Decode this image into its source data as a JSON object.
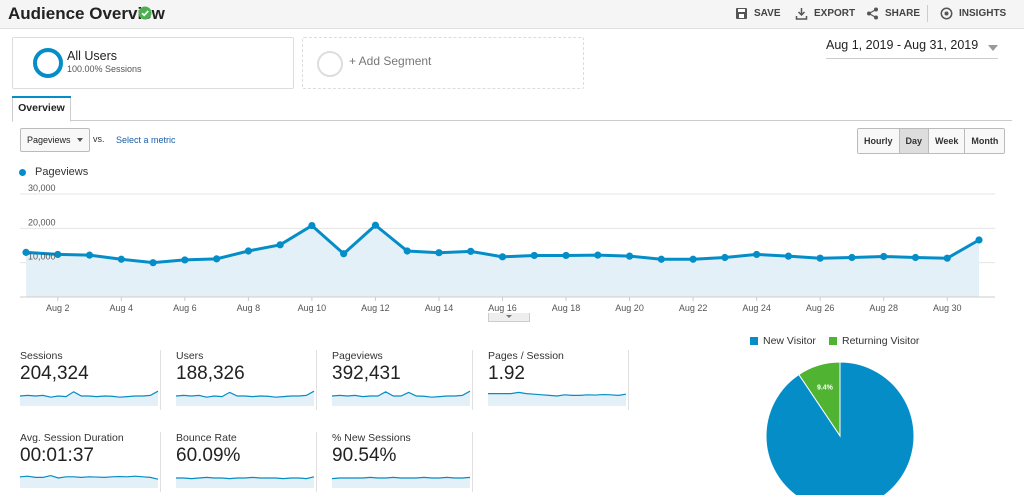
{
  "header": {
    "title": "Audience Overview",
    "actions": {
      "save": "SAVE",
      "export": "EXPORT",
      "share": "SHARE",
      "insights": "INSIGHTS"
    }
  },
  "segments": {
    "primary": {
      "name": "All Users",
      "detail": "100.00% Sessions",
      "color": "#058dc7"
    },
    "add": "+ Add Segment"
  },
  "date_range": "Aug 1, 2019 - Aug 31, 2019",
  "tabs": {
    "overview": "Overview"
  },
  "controls": {
    "metric": "Pageviews",
    "vs": "vs.",
    "select_metric": "Select a metric",
    "granularity": [
      "Hourly",
      "Day",
      "Week",
      "Month"
    ],
    "active_granularity": "Day"
  },
  "chart_data": {
    "type": "area",
    "legend": "Pageviews",
    "color": "#058dc7",
    "y_ticks": [
      "30,000",
      "20,000",
      "10,000"
    ],
    "ylim": [
      0,
      30000
    ],
    "x_tick_labels": [
      "Aug 2",
      "Aug 4",
      "Aug 6",
      "Aug 8",
      "Aug 10",
      "Aug 12",
      "Aug 14",
      "Aug 16",
      "Aug 18",
      "Aug 20",
      "Aug 22",
      "Aug 24",
      "Aug 26",
      "Aug 28",
      "Aug 30"
    ],
    "x": [
      1,
      2,
      3,
      4,
      5,
      6,
      7,
      8,
      9,
      10,
      11,
      12,
      13,
      14,
      15,
      16,
      17,
      18,
      19,
      20,
      21,
      22,
      23,
      24,
      25,
      26,
      27,
      28,
      29,
      30,
      31
    ],
    "values": [
      13000,
      12400,
      12200,
      11000,
      10000,
      10800,
      11100,
      13400,
      15200,
      20800,
      12600,
      20900,
      13400,
      12900,
      13300,
      11700,
      12100,
      12100,
      12200,
      11900,
      11000,
      11000,
      11500,
      12400,
      11900,
      11300,
      11500,
      11800,
      11500,
      11300,
      16600
    ]
  },
  "metrics": [
    {
      "label": "Sessions",
      "value": "204,324"
    },
    {
      "label": "Users",
      "value": "188,326"
    },
    {
      "label": "Pageviews",
      "value": "392,431"
    },
    {
      "label": "Pages / Session",
      "value": "1.92"
    },
    {
      "label": "Avg. Session Duration",
      "value": "00:01:37"
    },
    {
      "label": "Bounce Rate",
      "value": "60.09%"
    },
    {
      "label": "% New Sessions",
      "value": "90.54%"
    }
  ],
  "pie": {
    "type": "pie",
    "slices": [
      {
        "name": "New Visitor",
        "value": 90.6,
        "color": "#058dc7"
      },
      {
        "name": "Returning Visitor",
        "value": 9.4,
        "color": "#50b432",
        "label": "9.4%"
      }
    ]
  }
}
